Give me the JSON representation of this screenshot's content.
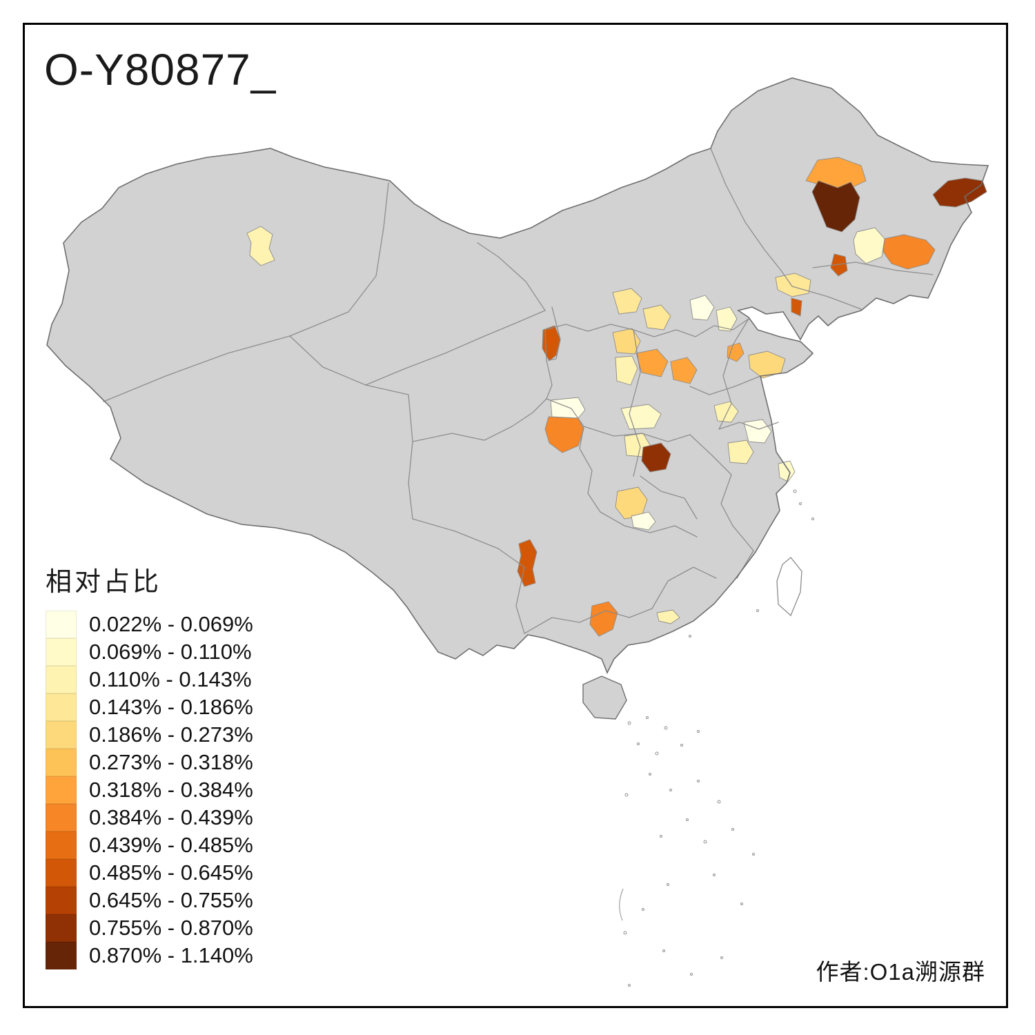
{
  "title": "O-Y80877_",
  "attribution": "作者:O1a溯源群",
  "legend": {
    "title": "相对占比",
    "items": [
      {
        "label": "0.022% - 0.069%",
        "color": "#FFFFE5"
      },
      {
        "label": "0.069% - 0.110%",
        "color": "#FFFAC8"
      },
      {
        "label": "0.110% - 0.143%",
        "color": "#FEF3B0"
      },
      {
        "label": "0.143% - 0.186%",
        "color": "#FEE796"
      },
      {
        "label": "0.186% - 0.273%",
        "color": "#FED97C"
      },
      {
        "label": "0.273% - 0.318%",
        "color": "#FEC356"
      },
      {
        "label": "0.318% - 0.384%",
        "color": "#FEA43B"
      },
      {
        "label": "0.384% - 0.439%",
        "color": "#F68626"
      },
      {
        "label": "0.439% - 0.485%",
        "color": "#E86E13"
      },
      {
        "label": "0.485% - 0.645%",
        "color": "#D25808"
      },
      {
        "label": "0.645% - 0.755%",
        "color": "#B64104"
      },
      {
        "label": "0.755% - 0.870%",
        "color": "#8F3104"
      },
      {
        "label": "0.870% - 1.140%",
        "color": "#662506"
      }
    ]
  },
  "map": {
    "base_fill": "#D2D2D2",
    "province_border_color": "#8A8A8A",
    "outline_color": "#6E6E6E",
    "taiwan_fill": "#FFFFFF",
    "region_border_color": "#8C8C8C",
    "regions": [
      {
        "name": "northeast-north-orange",
        "color": "#FEA43B"
      },
      {
        "name": "northeast-west-dark-brown",
        "color": "#662506"
      },
      {
        "name": "northeast-far-east-brown",
        "color": "#8F3104"
      },
      {
        "name": "northeast-central-cream",
        "color": "#FFFAC8"
      },
      {
        "name": "jilin-east-orange",
        "color": "#F68626"
      },
      {
        "name": "jilin-south-dark-orange",
        "color": "#D25808"
      },
      {
        "name": "liaoning-west-pale-yellow",
        "color": "#FEE796"
      },
      {
        "name": "liaoning-south-red-orange",
        "color": "#D25808"
      },
      {
        "name": "xinjiang-central-pale-yellow",
        "color": "#FEF3B0"
      },
      {
        "name": "inner-mongolia-west-pale-yellow",
        "color": "#FEE796"
      },
      {
        "name": "inner-mongolia-mid-pale-yellow",
        "color": "#FEE796"
      },
      {
        "name": "beijing-area-cream",
        "color": "#FFFFE5"
      },
      {
        "name": "hebei-north-cream",
        "color": "#FFFAC8"
      },
      {
        "name": "shanxi-north-yellow",
        "color": "#FED97C"
      },
      {
        "name": "shanxi-central-orange",
        "color": "#FEA43B"
      },
      {
        "name": "shanxi-east-orange",
        "color": "#FEA43B"
      },
      {
        "name": "shaanxi-north-pale-yellow",
        "color": "#FEF3B0"
      },
      {
        "name": "ningxia-dark-orange",
        "color": "#D25808"
      },
      {
        "name": "shandong-west-orange",
        "color": "#FEA43B"
      },
      {
        "name": "shandong-central-yellow",
        "color": "#FED97C"
      },
      {
        "name": "hebei-south-pale-yellow",
        "color": "#FEF3B0"
      },
      {
        "name": "shaanxi-south-orange",
        "color": "#F68626"
      },
      {
        "name": "gansu-south-cream",
        "color": "#FFFFE5"
      },
      {
        "name": "shaanxi-central-cream",
        "color": "#FFFAC8"
      },
      {
        "name": "hubei-northwest-pale-yellow",
        "color": "#FEF3B0"
      },
      {
        "name": "central-dark-brown",
        "color": "#8F3104"
      },
      {
        "name": "henan-east-pale-yellow",
        "color": "#FEF3B0"
      },
      {
        "name": "henan-central-cream",
        "color": "#FFFFE5"
      },
      {
        "name": "coast-east-cream",
        "color": "#FFFAC8"
      },
      {
        "name": "sichuan-east-yellow",
        "color": "#FED97C"
      },
      {
        "name": "chongqing-west-cream",
        "color": "#FFFFE5"
      },
      {
        "name": "guizhou-west-dark-orange",
        "color": "#D25808"
      },
      {
        "name": "guangxi-south-orange",
        "color": "#F68626"
      },
      {
        "name": "guangdong-west-pale-yellow",
        "color": "#FEF3B0"
      }
    ]
  }
}
